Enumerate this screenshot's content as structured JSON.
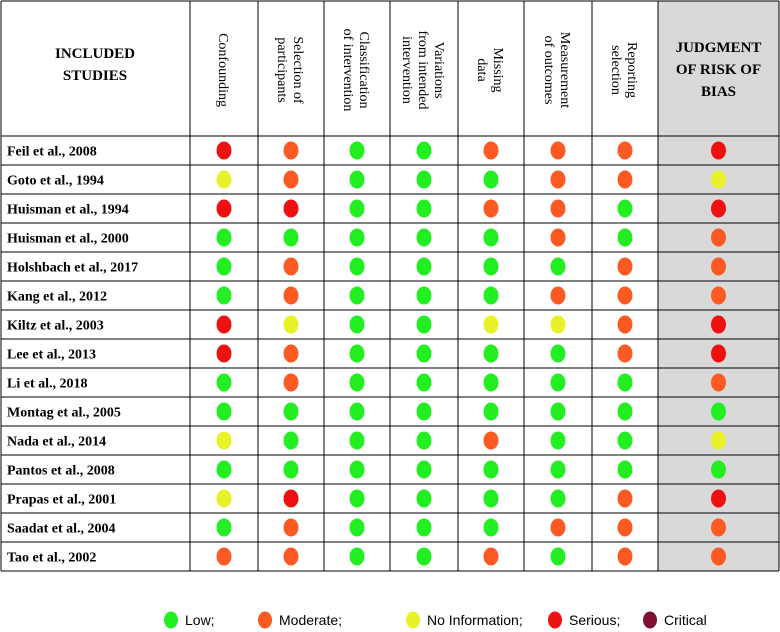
{
  "chart_data": {
    "type": "table",
    "header_first": "INCLUDED STUDIES",
    "columns": [
      "Confounding",
      "Selection of participants",
      "Classification of intervention",
      "Variations from intended intervention",
      "Missing data",
      "Measurement of outcomes",
      "Reporting selection"
    ],
    "judgment_header": [
      "JUDGMENT",
      "OF RISK OF",
      "BIAS"
    ],
    "colors": {
      "Low": "#22ee22",
      "Moderate": "#fc5a22",
      "No Information": "#e9f228",
      "Serious": "#ee1111",
      "Critical": "#7f1030"
    },
    "rows": [
      {
        "study": "Feil et al., 2008",
        "ratings": [
          "Serious",
          "Moderate",
          "Low",
          "Low",
          "Moderate",
          "Moderate",
          "Moderate"
        ],
        "judgment": "Serious"
      },
      {
        "study": "Goto et al., 1994",
        "ratings": [
          "No Information",
          "Moderate",
          "Low",
          "Low",
          "Low",
          "Moderate",
          "Moderate"
        ],
        "judgment": "No Information"
      },
      {
        "study": "Huisman et al., 1994",
        "ratings": [
          "Serious",
          "Serious",
          "Low",
          "Low",
          "Moderate",
          "Moderate",
          "Low"
        ],
        "judgment": "Serious"
      },
      {
        "study": "Huisman et al., 2000",
        "ratings": [
          "Low",
          "Low",
          "Low",
          "Low",
          "Low",
          "Moderate",
          "Low"
        ],
        "judgment": "Moderate"
      },
      {
        "study": "Holshbach et al., 2017",
        "ratings": [
          "Low",
          "Moderate",
          "Low",
          "Low",
          "Low",
          "Low",
          "Moderate"
        ],
        "judgment": "Moderate"
      },
      {
        "study": "Kang et al., 2012",
        "ratings": [
          "Low",
          "Moderate",
          "Low",
          "Low",
          "Low",
          "Moderate",
          "Moderate"
        ],
        "judgment": "Moderate"
      },
      {
        "study": "Kiltz et al., 2003",
        "ratings": [
          "Serious",
          "No Information",
          "Low",
          "Low",
          "No Information",
          "No Information",
          "Moderate"
        ],
        "judgment": "Serious"
      },
      {
        "study": "Lee et al., 2013",
        "ratings": [
          "Serious",
          "Moderate",
          "Low",
          "Low",
          "Low",
          "Low",
          "Moderate"
        ],
        "judgment": "Serious"
      },
      {
        "study": "Li et al., 2018",
        "ratings": [
          "Low",
          "Moderate",
          "Low",
          "Low",
          "Low",
          "Low",
          "Low"
        ],
        "judgment": "Moderate"
      },
      {
        "study": "Montag et al., 2005",
        "ratings": [
          "Low",
          "Low",
          "Low",
          "Low",
          "Low",
          "Low",
          "Low"
        ],
        "judgment": "Low"
      },
      {
        "study": "Nada et al., 2014",
        "ratings": [
          "No Information",
          "Low",
          "Low",
          "Low",
          "Moderate",
          "Low",
          "Low"
        ],
        "judgment": "No Information"
      },
      {
        "study": "Pantos et al., 2008",
        "ratings": [
          "Low",
          "Low",
          "Low",
          "Low",
          "Low",
          "Low",
          "Low"
        ],
        "judgment": "Low"
      },
      {
        "study": "Prapas et al., 2001",
        "ratings": [
          "No Information",
          "Serious",
          "Low",
          "Low",
          "Low",
          "Low",
          "Moderate"
        ],
        "judgment": "Serious"
      },
      {
        "study": "Saadat et al., 2004",
        "ratings": [
          "Low",
          "Moderate",
          "Low",
          "Low",
          "Low",
          "Moderate",
          "Moderate"
        ],
        "judgment": "Moderate"
      },
      {
        "study": "Tao et al., 2002",
        "ratings": [
          "Moderate",
          "Moderate",
          "Low",
          "Low",
          "Moderate",
          "Low",
          "Moderate"
        ],
        "judgment": "Moderate"
      }
    ],
    "legend": [
      {
        "label": "Low;",
        "category": "Low"
      },
      {
        "label": "Moderate;",
        "category": "Moderate"
      },
      {
        "label": "No Information;",
        "category": "No Information"
      },
      {
        "label": "Serious;",
        "category": "Serious"
      },
      {
        "label": "Critical",
        "category": "Critical"
      }
    ]
  }
}
